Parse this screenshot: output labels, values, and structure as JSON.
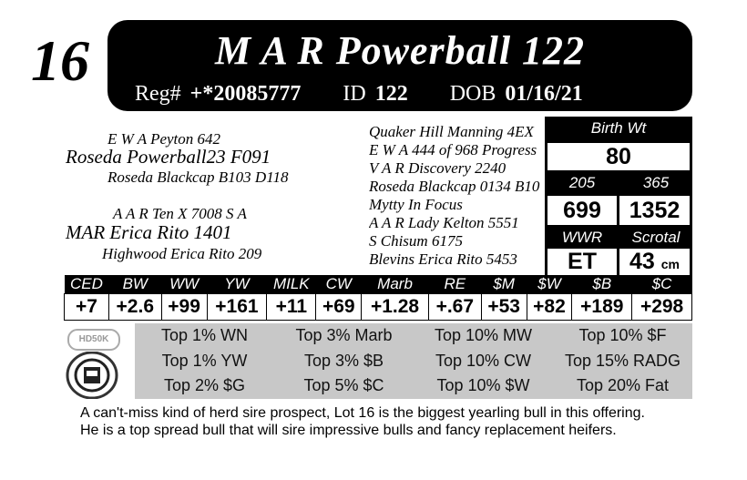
{
  "lot_number": "16",
  "name": "M A R Powerball 122",
  "reg_label": "Reg#",
  "reg": "+*20085777",
  "id_label": "ID",
  "id": "122",
  "dob_label": "DOB",
  "dob": "01/16/21",
  "pedigree_left": {
    "sire_sire": "E W A Peyton 642",
    "sire": "Roseda Powerball23 F091",
    "sire_dam": "Roseda Blackcap B103 D118",
    "dam_sire": "A A R Ten X 7008 S A",
    "dam": "MAR Erica Rito 1401",
    "dam_dam": "Highwood Erica Rito 209"
  },
  "pedigree_right": [
    "Quaker Hill Manning 4EX",
    "E W A 444 of 968 Progress",
    "V A R Discovery 2240",
    "Roseda Blackcap 0134 B10",
    "Mytty In Focus",
    "A A R Lady Kelton 5551",
    "S Chisum 6175",
    "Blevins Erica Rito 5453"
  ],
  "stats": {
    "birth_wt_label": "Birth Wt",
    "birth_wt": "80",
    "w205_label": "205",
    "w205": "699",
    "w365_label": "365",
    "w365": "1352",
    "wwr_label": "WWR",
    "wwr": "ET",
    "scrotal_label": "Scrotal",
    "scrotal": "43",
    "scrotal_unit": "cm"
  },
  "epd": {
    "headers": [
      "CED",
      "BW",
      "WW",
      "YW",
      "MILK",
      "CW",
      "Marb",
      "RE",
      "$M",
      "$W",
      "$B",
      "$C"
    ],
    "values": [
      "+7",
      "+2.6",
      "+99",
      "+161",
      "+11",
      "+69",
      "+1.28",
      "+.67",
      "+53",
      "+82",
      "+189",
      "+298"
    ]
  },
  "logos": {
    "hd50k": "HD50K"
  },
  "rankings": [
    "Top 1% WN",
    "Top 3% Marb",
    "Top 10% MW",
    "Top 10% $F",
    "Top 1% YW",
    "Top 3% $B",
    "Top 10% CW",
    "Top 15% RADG",
    "Top 2% $G",
    "Top 5% $C",
    "Top 10% $W",
    "Top 20% Fat"
  ],
  "description": "A can't-miss kind of herd sire prospect, Lot 16 is the biggest yearling bull in this offering. He is a top spread bull that will sire impressive bulls and fancy replacement heifers."
}
